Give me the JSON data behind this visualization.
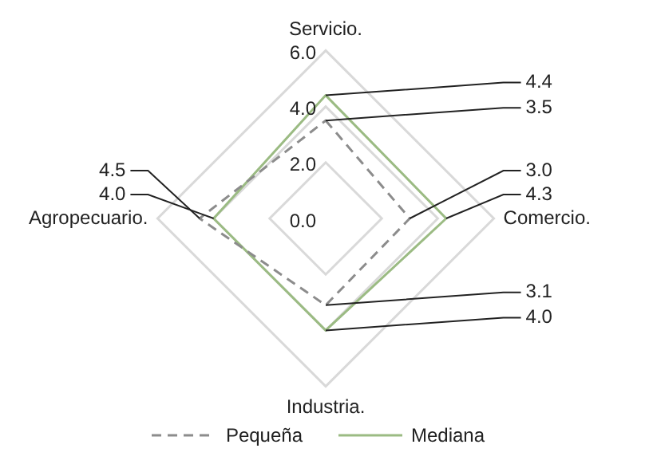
{
  "chart_data": {
    "type": "radar",
    "categories": [
      "Servicio.",
      "Comercio.",
      "Industria.",
      "Agropecuario."
    ],
    "series": [
      {
        "name": "Pequeña",
        "color": "#8c8c8c",
        "line_style": "dashed",
        "values": [
          3.5,
          3.0,
          3.1,
          4.5
        ],
        "value_labels": [
          "3.5",
          "3.0",
          "3.1",
          "4.5"
        ]
      },
      {
        "name": "Mediana",
        "color": "#9bbb83",
        "line_style": "solid",
        "values": [
          4.4,
          4.3,
          4.0,
          4.0
        ],
        "value_labels": [
          "4.4",
          "4.3",
          "4.0",
          "4.0"
        ]
      }
    ],
    "ylim": [
      0,
      6
    ],
    "yticks": [
      {
        "value": 0,
        "label": "0.0"
      },
      {
        "value": 2,
        "label": "2.0"
      },
      {
        "value": 4,
        "label": "4.0"
      },
      {
        "value": 6,
        "label": "6.0"
      }
    ],
    "grid": true,
    "legend": "bottom",
    "marker": "none"
  }
}
